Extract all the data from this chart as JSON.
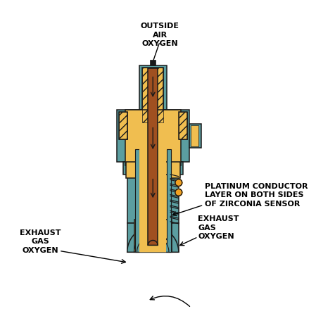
{
  "background_color": "#ffffff",
  "colors": {
    "teal": "#5B9EA0",
    "yellow": "#F0BE50",
    "yellow_light": "#F5D070",
    "brown": "#A05020",
    "black": "#1A1A1A",
    "orange_dot": "#F0A020",
    "outline": "#1A1A1A",
    "white": "#ffffff"
  },
  "labels": {
    "top": "OUTSIDE\nAIR\nOXYGEN",
    "left": "EXHAUST\nGAS\nOXYGEN",
    "right_top": "PLATINUM CONDUCTOR\nLAYER ON BOTH SIDES\nOF ZIRCONIA SENSOR",
    "right_bottom": "EXHAUST\nGAS\nOXYGEN"
  },
  "font_size": 8.0,
  "label_font_weight": "bold"
}
